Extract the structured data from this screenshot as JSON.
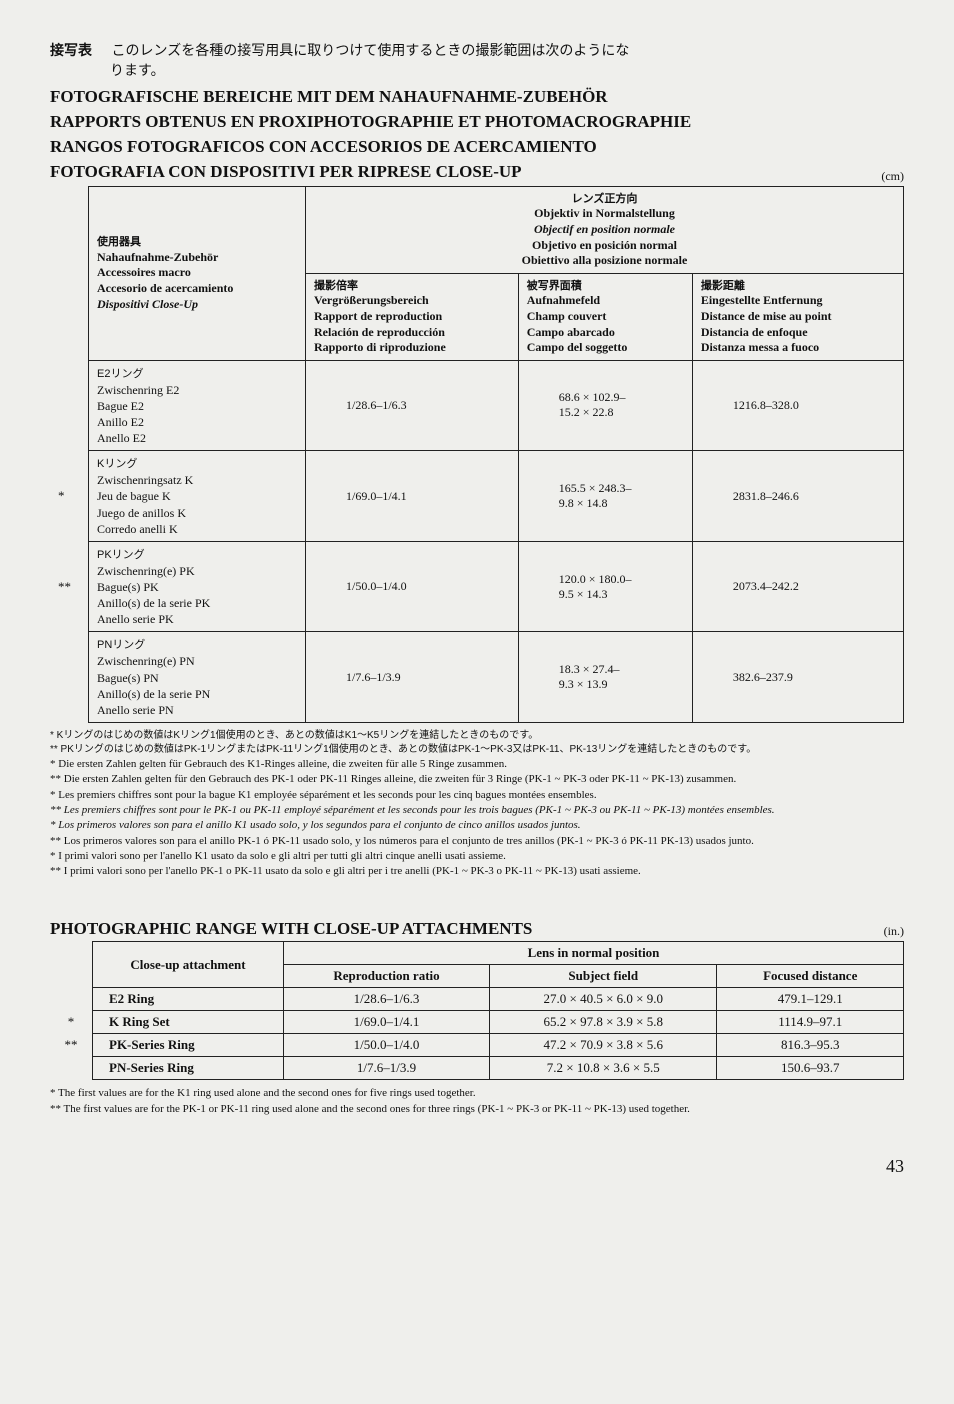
{
  "jp_header": {
    "label": "接写表",
    "line1": "このレンズを各種の接写用具に取りつけて使用するときの撮影範囲は次のようにな",
    "line2": "ります。"
  },
  "main_titles": [
    "FOTOGRAFISCHE BEREICHE MIT DEM NAHAUFNAHME-ZUBEHÖR",
    "RAPPORTS OBTENUS EN PROXIPHOTOGRAPHIE ET PHOTOMACROGRAPHIE",
    "RANGOS FOTOGRAFICOS CON ACCESORIOS DE ACERCAMIENTO",
    "FOTOGRAFIA CON DISPOSITIVI PER RIPRESE CLOSE-UP"
  ],
  "unit_cm": "(cm)",
  "table1": {
    "hdr_equipment": {
      "jp": "使用器具",
      "de": "Nahaufnahme-Zubehör",
      "fr": "Accessoires macro",
      "es": "Accesorio de acercamiento",
      "it": "Dispositivi Close-Up"
    },
    "hdr_lens_normal": {
      "jp": "レンズ正方向",
      "de": "Objektiv in Normalstellung",
      "fr": "Objectif en position normale",
      "es": "Objetivo en posición normal",
      "it": "Obiettivo alla posizione normale"
    },
    "hdr_repro": {
      "jp": "撮影倍率",
      "de": "Vergrößerungsbereich",
      "fr": "Rapport de reproduction",
      "es": "Relación de reproducción",
      "it": "Rapporto di riproduzione"
    },
    "hdr_field": {
      "jp": "被写界面積",
      "de": "Aufnahmefeld",
      "fr": "Champ couvert",
      "es": "Campo abarcado",
      "it": "Campo del soggetto"
    },
    "hdr_dist": {
      "jp": "撮影距離",
      "de": "Eingestellte Entfernung",
      "fr": "Distance de mise au point",
      "es": "Distancia de enfoque",
      "it": "Distanza messa a fuoco"
    },
    "rows": [
      {
        "star": "",
        "equip_jp": "E2リング",
        "equip": [
          "Zwischenring E2",
          "Bague E2",
          "Anillo E2",
          "Anello E2"
        ],
        "repro": "1/28.6–1/6.3",
        "field": "68.6 × 102.9–\n15.2 × 22.8",
        "dist": "1216.8–328.0"
      },
      {
        "star": "*",
        "equip_jp": "Kリング",
        "equip": [
          "Zwischenringsatz K",
          "Jeu de bague K",
          "Juego de anillos K",
          "Corredo anelli K"
        ],
        "repro": "1/69.0–1/4.1",
        "field": "165.5 × 248.3–\n9.8 × 14.8",
        "dist": "2831.8–246.6"
      },
      {
        "star": "**",
        "equip_jp": "PKリング",
        "equip": [
          "Zwischenring(e) PK",
          "Bague(s) PK",
          "Anillo(s) de la serie PK",
          "Anello serie PK"
        ],
        "repro": "1/50.0–1/4.0",
        "field": "120.0 × 180.0–\n9.5 × 14.3",
        "dist": "2073.4–242.2"
      },
      {
        "star": "",
        "equip_jp": "PNリング",
        "equip": [
          "Zwischenring(e) PN",
          "Bague(s) PN",
          "Anillo(s) de la serie PN",
          "Anello serie PN"
        ],
        "repro": "1/7.6–1/3.9",
        "field": "18.3 × 27.4–\n9.3 × 13.9",
        "dist": "382.6–237.9"
      }
    ]
  },
  "footnotes1": [
    {
      "mark": "*",
      "cls": "jp",
      "text": "Kリングのはじめの数値はKリング1個使用のとき、あとの数値はK1～K5リングを連結したときのものです。"
    },
    {
      "mark": "**",
      "cls": "jp",
      "text": "PKリングのはじめの数値はPK-1リングまたはPK-11リング1個使用のとき、あとの数値はPK-1～PK-3又はPK-11、PK-13リングを連結したときのものです。"
    },
    {
      "mark": "*",
      "cls": "",
      "text": "Die ersten Zahlen gelten für Gebrauch des K1-Ringes alleine, die zweiten für alle 5 Ringe zusammen."
    },
    {
      "mark": "**",
      "cls": "",
      "text": "Die ersten Zahlen gelten für den Gebrauch des PK-1 oder PK-11 Ringes alleine, die zweiten für 3 Ringe (PK-1 ~ PK-3 oder PK-11 ~ PK-13) zusammen."
    },
    {
      "mark": "*",
      "cls": "",
      "text": "Les premiers chiffres sont pour la bague K1 employée séparément et les seconds pour les cinq bagues montées ensembles."
    },
    {
      "mark": "**",
      "cls": "italic",
      "text": "Les premiers chiffres sont pour le PK-1 ou PK-11 employé séparément et les seconds pour les trois bagues (PK-1 ~ PK-3 ou PK-11 ~ PK-13) montées ensembles."
    },
    {
      "mark": "*",
      "cls": "italic",
      "text": "Los primeros valores son para el anillo K1 usado solo, y los segundos para el conjunto de cinco anillos usados juntos."
    },
    {
      "mark": "**",
      "cls": "",
      "text": "Los primeros valores son para el anillo PK-1 ó PK-11 usado solo, y los números para el conjunto de tres anillos (PK-1 ~ PK-3 ó PK-11 PK-13) usados junto."
    },
    {
      "mark": "*",
      "cls": "",
      "text": "I primi valori sono per l'anello K1 usato da solo e gli altri per tutti gli altri cinque anelli usati assieme."
    },
    {
      "mark": "**",
      "cls": "",
      "text": "I primi valori sono per l'anello PK-1 o PK-11 usato da solo e gli altri per i tre anelli (PK-1 ~ PK-3 o PK-11 ~ PK-13) usati assieme."
    }
  ],
  "section2_title": "PHOTOGRAPHIC RANGE WITH CLOSE-UP ATTACHMENTS",
  "unit_in": "(in.)",
  "table2": {
    "hdr_attach": "Close-up attachment",
    "hdr_lens": "Lens in normal position",
    "hdr_repro": "Reproduction ratio",
    "hdr_subj": "Subject field",
    "hdr_focus": "Focused distance",
    "rows": [
      {
        "star": "",
        "name": "E2 Ring",
        "repro": "1/28.6–1/6.3",
        "subj": "27.0 × 40.5 × 6.0 × 9.0",
        "focus": "479.1–129.1"
      },
      {
        "star": "*",
        "name": "K Ring Set",
        "repro": "1/69.0–1/4.1",
        "subj": "65.2 × 97.8 × 3.9 × 5.8",
        "focus": "1114.9–97.1"
      },
      {
        "star": "**",
        "name": "PK-Series Ring",
        "repro": "1/50.0–1/4.0",
        "subj": "47.2 × 70.9 × 3.8 × 5.6",
        "focus": "816.3–95.3"
      },
      {
        "star": "",
        "name": "PN-Series Ring",
        "repro": "1/7.6–1/3.9",
        "subj": "7.2 × 10.8 × 3.6 × 5.5",
        "focus": "150.6–93.7"
      }
    ]
  },
  "footnotes2": [
    {
      "mark": "*",
      "text": "The first values are for the K1 ring used alone and the second ones for five rings used together."
    },
    {
      "mark": "**",
      "text": "The first values are for the PK-1 or PK-11 ring used alone and the second ones for three rings (PK-1 ~ PK-3 or PK-11 ~ PK-13) used together."
    }
  ],
  "page_number": "43"
}
